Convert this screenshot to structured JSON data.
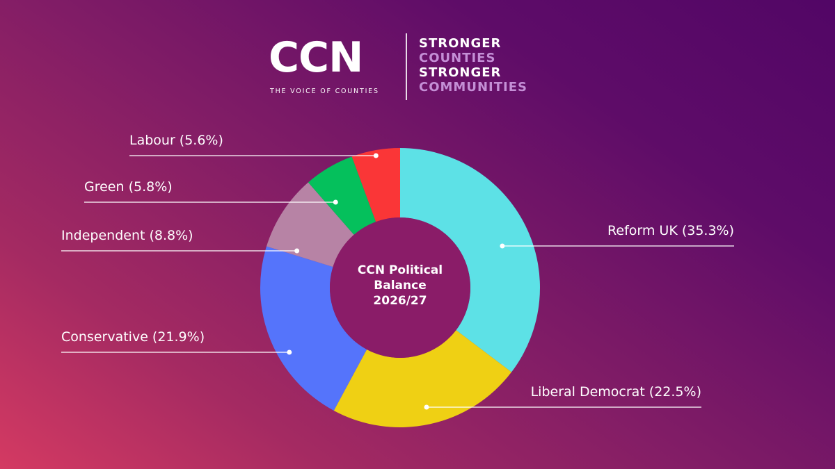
{
  "header": {
    "logo": "CCN",
    "logo_sub": "THE VOICE OF COUNTIES",
    "tagline": [
      "STRONGER",
      "COUNTIES",
      "STRONGER",
      "COMMUNITIES"
    ]
  },
  "colors": {
    "background_start": "#d43a62",
    "background_end": "#520666",
    "donut_hole": "#8a1c68",
    "tagline_accent": "#c48fd6"
  },
  "chart_data": {
    "type": "pie",
    "variant": "donut",
    "center_text": [
      "CCN Political",
      "Balance",
      "2026/27"
    ],
    "categories": [
      "Reform UK",
      "Liberal Democrat",
      "Conservative",
      "Independent",
      "Green",
      "Labour"
    ],
    "values": [
      35.3,
      22.5,
      21.9,
      8.8,
      5.8,
      5.6
    ],
    "unit": "%",
    "labels": [
      "Reform UK (35.3%)",
      "Liberal Democrat (22.5%)",
      "Conservative (21.9%)",
      "Independent (8.8%)",
      "Green (5.8%)",
      "Labour (5.6%)"
    ],
    "colors": [
      "#5de1e6",
      "#efd014",
      "#5574fb",
      "#b783a5",
      "#05c05c",
      "#fa3637"
    ],
    "label_placement": [
      "right",
      "right",
      "left",
      "left",
      "left",
      "left"
    ],
    "direction": "clockwise from top"
  }
}
